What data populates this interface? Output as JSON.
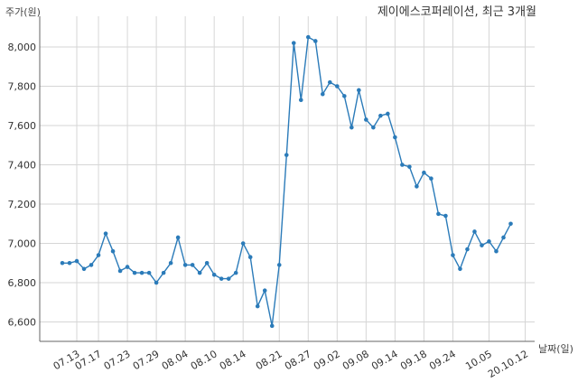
{
  "chart_data": {
    "type": "line",
    "title": "제이에스코퍼레이션, 최근 3개월",
    "ylabel": "주가(원)",
    "xlabel": "날짜(일)",
    "ylim": [
      6500,
      8120
    ],
    "y_ticks": [
      6600,
      6800,
      7000,
      7200,
      7400,
      7600,
      7800,
      8000
    ],
    "y_tick_labels": [
      "6,600",
      "6,800",
      "7,000",
      "7,200",
      "7,400",
      "7,600",
      "7,800",
      "8,000"
    ],
    "x_tick_labels": [
      "07.13",
      "07.17",
      "07.23",
      "07.29",
      "08.04",
      "08.10",
      "08.14",
      "08.21",
      "08.27",
      "09.02",
      "09.08",
      "09.14",
      "09.18",
      "09.24",
      "10.05",
      "20.10.12"
    ],
    "x_tick_indices": [
      2,
      5,
      9,
      13,
      17,
      21,
      25,
      30,
      34,
      38,
      42,
      46,
      50,
      54,
      59,
      64
    ],
    "grid": true,
    "line_color": "#2b7bb9",
    "series": [
      {
        "values": [
          6900,
          6900,
          6910,
          6870,
          6890,
          6940,
          7050,
          6960,
          6860,
          6880,
          6850,
          6850,
          6850,
          6800,
          6850,
          6900,
          7030,
          6890,
          6890,
          6850,
          6900,
          6840,
          6820,
          6820,
          6850,
          7000,
          6930,
          6680,
          6760,
          6580,
          6890,
          7450,
          8020,
          7730,
          8050,
          8030,
          7760,
          7820,
          7800,
          7750,
          7590,
          7780,
          7630,
          7590,
          7650,
          7660,
          7540,
          7400,
          7390,
          7290,
          7360,
          7330,
          7150,
          7140,
          6940,
          6870,
          6970,
          7060,
          6990,
          7010,
          6960,
          7030,
          7100
        ]
      }
    ]
  }
}
